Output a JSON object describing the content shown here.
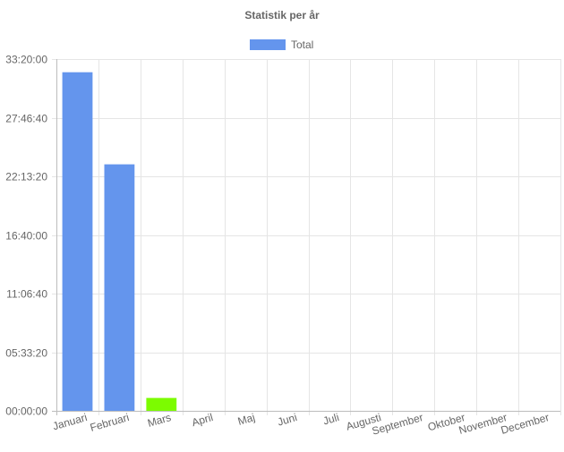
{
  "chart_data": {
    "type": "bar",
    "title": "Statistik per år",
    "categories": [
      "Januari",
      "Februari",
      "Mars",
      "April",
      "Maj",
      "Juni",
      "Juli",
      "Augusti",
      "September",
      "Oktober",
      "November",
      "December"
    ],
    "series": [
      {
        "name": "Total",
        "color": "#6495ed",
        "values": [
          115500,
          84100,
          4400,
          0,
          0,
          0,
          0,
          0,
          0,
          0,
          0,
          0
        ],
        "bar_colors": [
          "#6495ed",
          "#6495ed",
          "#7cfc00",
          "#6495ed",
          "#6495ed",
          "#6495ed",
          "#6495ed",
          "#6495ed",
          "#6495ed",
          "#6495ed",
          "#6495ed",
          "#6495ed"
        ]
      }
    ],
    "y_unit": "seconds",
    "ylim": [
      0,
      120000
    ],
    "yticks": [
      0,
      20000,
      40000,
      60000,
      80000,
      100000,
      120000
    ],
    "ytick_labels": [
      "00:00:00",
      "05:33:20",
      "11:06:40",
      "16:40:00",
      "22:13:20",
      "27:46:40",
      "33:20:00"
    ],
    "xlabel": "",
    "ylabel": "",
    "grid": true,
    "legend": "top-center"
  }
}
